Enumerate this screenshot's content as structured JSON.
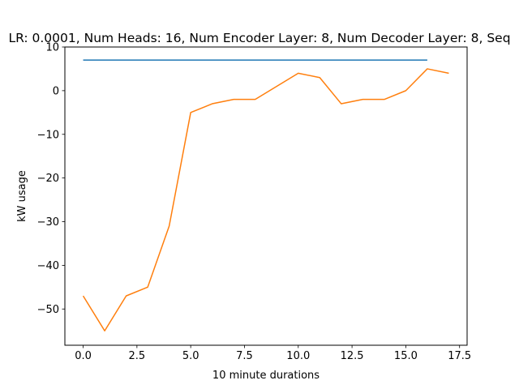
{
  "chart_data": {
    "type": "line",
    "title": "LR: 0.0001, Num Heads: 16, Num Encoder Layer: 8, Num Decoder Layer: 8, Seq",
    "xlabel": "10 minute durations",
    "ylabel": "kW usage",
    "xlim": [
      -0.85,
      17.85
    ],
    "ylim": [
      -58.3,
      10
    ],
    "xticks": [
      0.0,
      2.5,
      5.0,
      7.5,
      10.0,
      12.5,
      15.0,
      17.5
    ],
    "xtick_labels": [
      "0.0",
      "2.5",
      "5.0",
      "7.5",
      "10.0",
      "12.5",
      "15.0",
      "17.5"
    ],
    "yticks": [
      10,
      0,
      -10,
      -20,
      -30,
      -40,
      -50
    ],
    "ytick_labels": [
      "10",
      "0",
      "−10",
      "−20",
      "−30",
      "−40",
      "−50"
    ],
    "grid": false,
    "legend": false,
    "series": [
      {
        "color": "#1f77b4",
        "x": [
          0,
          16
        ],
        "y": [
          7,
          7
        ]
      },
      {
        "color": "#ff7f0e",
        "x": [
          0,
          1,
          2,
          3,
          4,
          5,
          6,
          7,
          8,
          9,
          10,
          11,
          12,
          13,
          14,
          15,
          16,
          17
        ],
        "y": [
          -47,
          -55,
          -47,
          -45,
          -31,
          -5,
          -3,
          -2,
          -2,
          1,
          4,
          3,
          -3,
          -2,
          -2,
          0,
          5,
          4
        ]
      }
    ]
  }
}
